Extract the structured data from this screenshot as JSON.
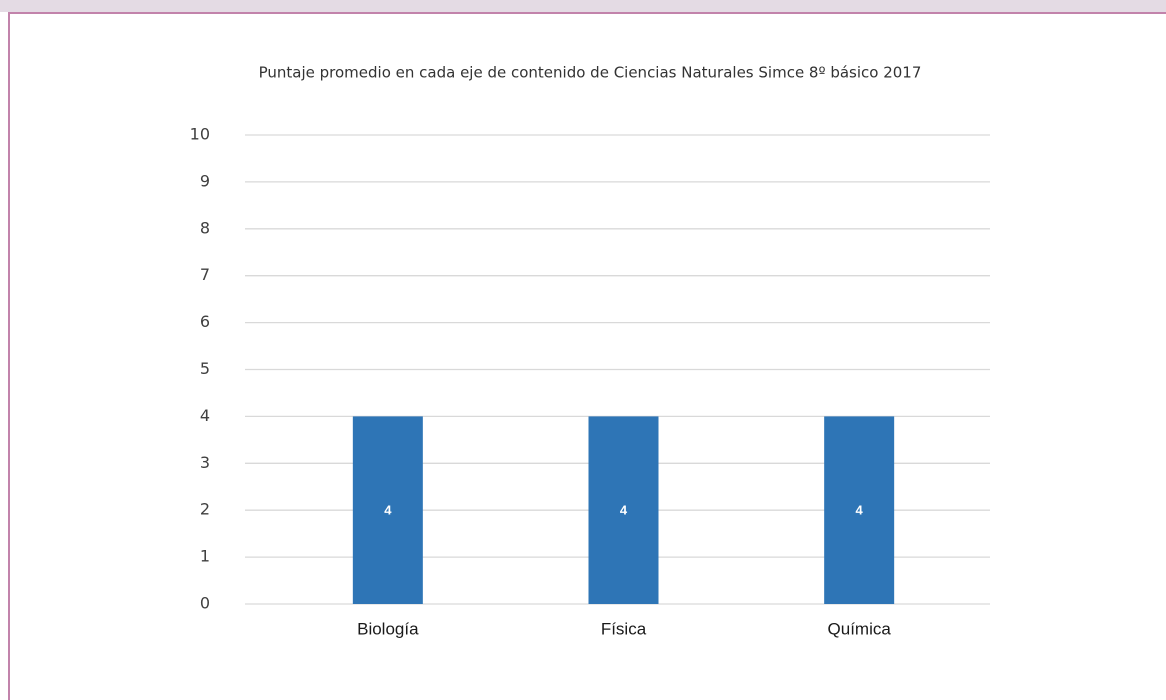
{
  "chart_data": {
    "type": "bar",
    "title": "Puntaje promedio en cada eje de contenido de Ciencias Naturales Simce 8º básico 2017",
    "categories": [
      "Biología",
      "Física",
      "Química"
    ],
    "values": [
      4,
      4,
      4
    ],
    "color": "#2e75b6",
    "ylim": [
      0,
      10
    ],
    "yticks": [
      0,
      1,
      2,
      3,
      4,
      5,
      6,
      7,
      8,
      9,
      10
    ],
    "grid": true
  }
}
